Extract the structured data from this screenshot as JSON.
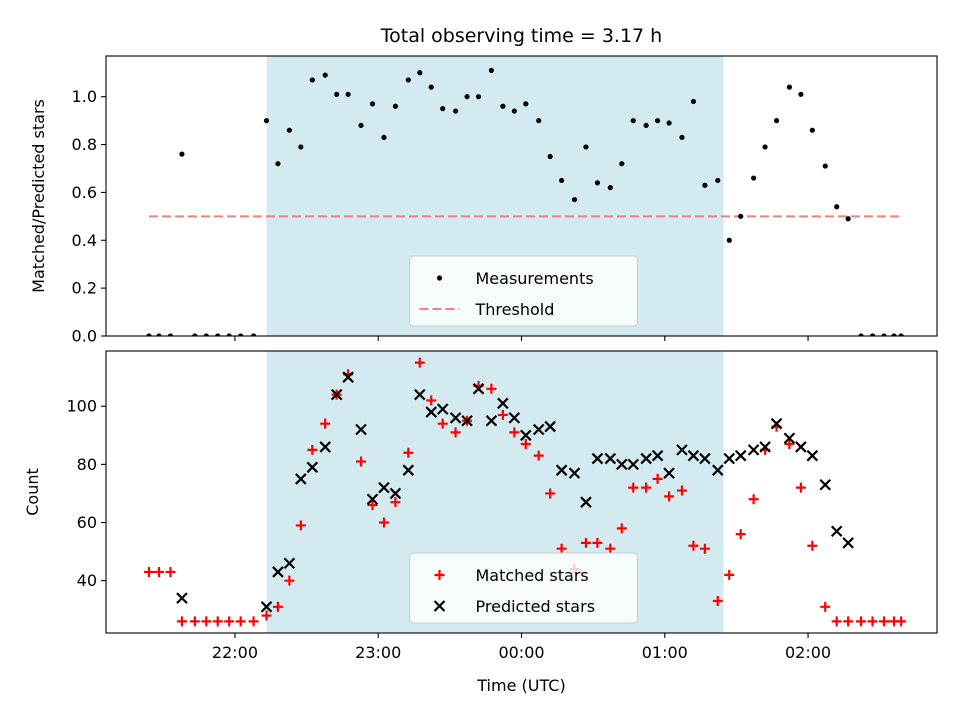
{
  "chart_data": [
    {
      "type": "scatter",
      "title": "Total observing time = 3.17 h",
      "ylabel": "Matched/Predicted stars",
      "xlabel": "",
      "x_unit": "hours since 00:00 UTC",
      "xlim": [
        -2.9,
        2.9
      ],
      "ylim": [
        0,
        1.17
      ],
      "yticks": [
        0.0,
        0.2,
        0.4,
        0.6,
        0.8,
        1.0
      ],
      "ytick_labels": [
        "0.0",
        "0.2",
        "0.4",
        "0.6",
        "0.8",
        "1.0"
      ],
      "xticks": [
        -2,
        -1,
        0,
        1,
        2
      ],
      "observing_window": [
        -1.78,
        1.41
      ],
      "shade_color": "#d3eaf0",
      "legend": {
        "position": "lower-center",
        "entries": [
          "Measurements",
          "Threshold"
        ]
      },
      "threshold": {
        "name": "Threshold",
        "value": 0.5,
        "x_range": [
          -2.6,
          2.65
        ],
        "color": "#f08080"
      },
      "series": [
        {
          "name": "Measurements",
          "marker": "dot",
          "color": "#000000",
          "x": [
            -2.6,
            -2.53,
            -2.45,
            -2.37,
            -2.28,
            -2.2,
            -2.12,
            -2.04,
            -1.96,
            -1.87,
            -1.78,
            -1.7,
            -1.62,
            -1.54,
            -1.46,
            -1.37,
            -1.29,
            -1.21,
            -1.12,
            -1.04,
            -0.96,
            -0.88,
            -0.79,
            -0.71,
            -0.63,
            -0.55,
            -0.46,
            -0.38,
            -0.3,
            -0.21,
            -0.13,
            -0.05,
            0.03,
            0.12,
            0.2,
            0.28,
            0.37,
            0.45,
            0.53,
            0.62,
            0.7,
            0.78,
            0.87,
            0.95,
            1.03,
            1.12,
            1.2,
            1.28,
            1.37,
            1.45,
            1.53,
            1.62,
            1.7,
            1.78,
            1.87,
            1.95,
            2.03,
            2.12,
            2.2,
            2.28,
            2.37,
            2.45,
            2.53,
            2.6,
            2.65
          ],
          "y": [
            0,
            0,
            0,
            0.76,
            0,
            0,
            0,
            0,
            0,
            0,
            0.9,
            0.72,
            0.86,
            0.79,
            1.07,
            1.09,
            1.01,
            1.01,
            0.88,
            0.97,
            0.83,
            0.96,
            1.07,
            1.1,
            1.04,
            0.95,
            0.94,
            1.0,
            1.0,
            1.11,
            0.96,
            0.94,
            0.97,
            0.9,
            0.75,
            0.65,
            0.57,
            0.79,
            0.64,
            0.62,
            0.72,
            0.9,
            0.88,
            0.9,
            0.89,
            0.83,
            0.98,
            0.63,
            0.65,
            0.4,
            0.5,
            0.66,
            0.79,
            0.9,
            1.04,
            1.01,
            0.86,
            0.71,
            0.54,
            0.49,
            0,
            0,
            0,
            0,
            0
          ]
        }
      ]
    },
    {
      "type": "scatter",
      "title": "",
      "ylabel": "Count",
      "xlabel": "Time (UTC)",
      "x_unit": "hours since 00:00 UTC",
      "xlim": [
        -2.9,
        2.9
      ],
      "ylim": [
        22,
        119
      ],
      "yticks": [
        40,
        60,
        80,
        100
      ],
      "ytick_labels": [
        "40",
        "60",
        "80",
        "100"
      ],
      "xticks": [
        -2,
        -1,
        0,
        1,
        2
      ],
      "xtick_labels": [
        "22:00",
        "23:00",
        "00:00",
        "01:00",
        "02:00"
      ],
      "observing_window": [
        -1.78,
        1.41
      ],
      "shade_color": "#d3eaf0",
      "legend": {
        "position": "lower-center",
        "entries": [
          "Matched stars",
          "Predicted stars"
        ]
      },
      "series": [
        {
          "name": "Matched stars",
          "marker": "plus",
          "color": "#ff0000",
          "x": [
            -2.6,
            -2.53,
            -2.45,
            -2.37,
            -2.28,
            -2.2,
            -2.12,
            -2.04,
            -1.96,
            -1.87,
            -1.78,
            -1.7,
            -1.62,
            -1.54,
            -1.46,
            -1.37,
            -1.29,
            -1.21,
            -1.12,
            -1.04,
            -0.96,
            -0.88,
            -0.79,
            -0.71,
            -0.63,
            -0.55,
            -0.46,
            -0.38,
            -0.3,
            -0.21,
            -0.13,
            -0.05,
            0.03,
            0.12,
            0.2,
            0.28,
            0.37,
            0.45,
            0.53,
            0.62,
            0.7,
            0.78,
            0.87,
            0.95,
            1.03,
            1.12,
            1.2,
            1.28,
            1.37,
            1.45,
            1.53,
            1.62,
            1.7,
            1.78,
            1.87,
            1.95,
            2.03,
            2.12,
            2.2,
            2.28,
            2.37,
            2.45,
            2.53,
            2.6,
            2.65
          ],
          "y": [
            43,
            43,
            43,
            26,
            26,
            26,
            26,
            26,
            26,
            26,
            28,
            31,
            40,
            59,
            85,
            94,
            104,
            111,
            81,
            66,
            60,
            67,
            84,
            115,
            102,
            94,
            91,
            95,
            107,
            106,
            97,
            91,
            87,
            83,
            70,
            51,
            44,
            53,
            53,
            51,
            58,
            72,
            72,
            75,
            69,
            71,
            52,
            51,
            33,
            42,
            56,
            68,
            85,
            93,
            87,
            72,
            52,
            31,
            26,
            26,
            26,
            26,
            26,
            26,
            26
          ]
        },
        {
          "name": "Predicted stars",
          "marker": "cross",
          "color": "#000000",
          "x": [
            -2.37,
            -1.78,
            -1.7,
            -1.62,
            -1.54,
            -1.46,
            -1.37,
            -1.29,
            -1.21,
            -1.12,
            -1.04,
            -0.96,
            -0.88,
            -0.79,
            -0.71,
            -0.63,
            -0.55,
            -0.46,
            -0.38,
            -0.3,
            -0.21,
            -0.13,
            -0.05,
            0.03,
            0.12,
            0.2,
            0.28,
            0.37,
            0.45,
            0.53,
            0.62,
            0.7,
            0.78,
            0.87,
            0.95,
            1.03,
            1.12,
            1.2,
            1.28,
            1.37,
            1.45,
            1.53,
            1.62,
            1.7,
            1.78,
            1.87,
            1.95,
            2.03,
            2.12,
            2.2,
            2.28
          ],
          "y": [
            34,
            31,
            43,
            46,
            75,
            79,
            86,
            104,
            110,
            92,
            68,
            72,
            70,
            78,
            104,
            98,
            99,
            96,
            95,
            106,
            95,
            101,
            96,
            90,
            92,
            93,
            78,
            77,
            67,
            82,
            82,
            80,
            80,
            82,
            83,
            77,
            85,
            83,
            82,
            78,
            82,
            83,
            85,
            86,
            94,
            89,
            86,
            83,
            73,
            57,
            53
          ]
        }
      ]
    }
  ]
}
